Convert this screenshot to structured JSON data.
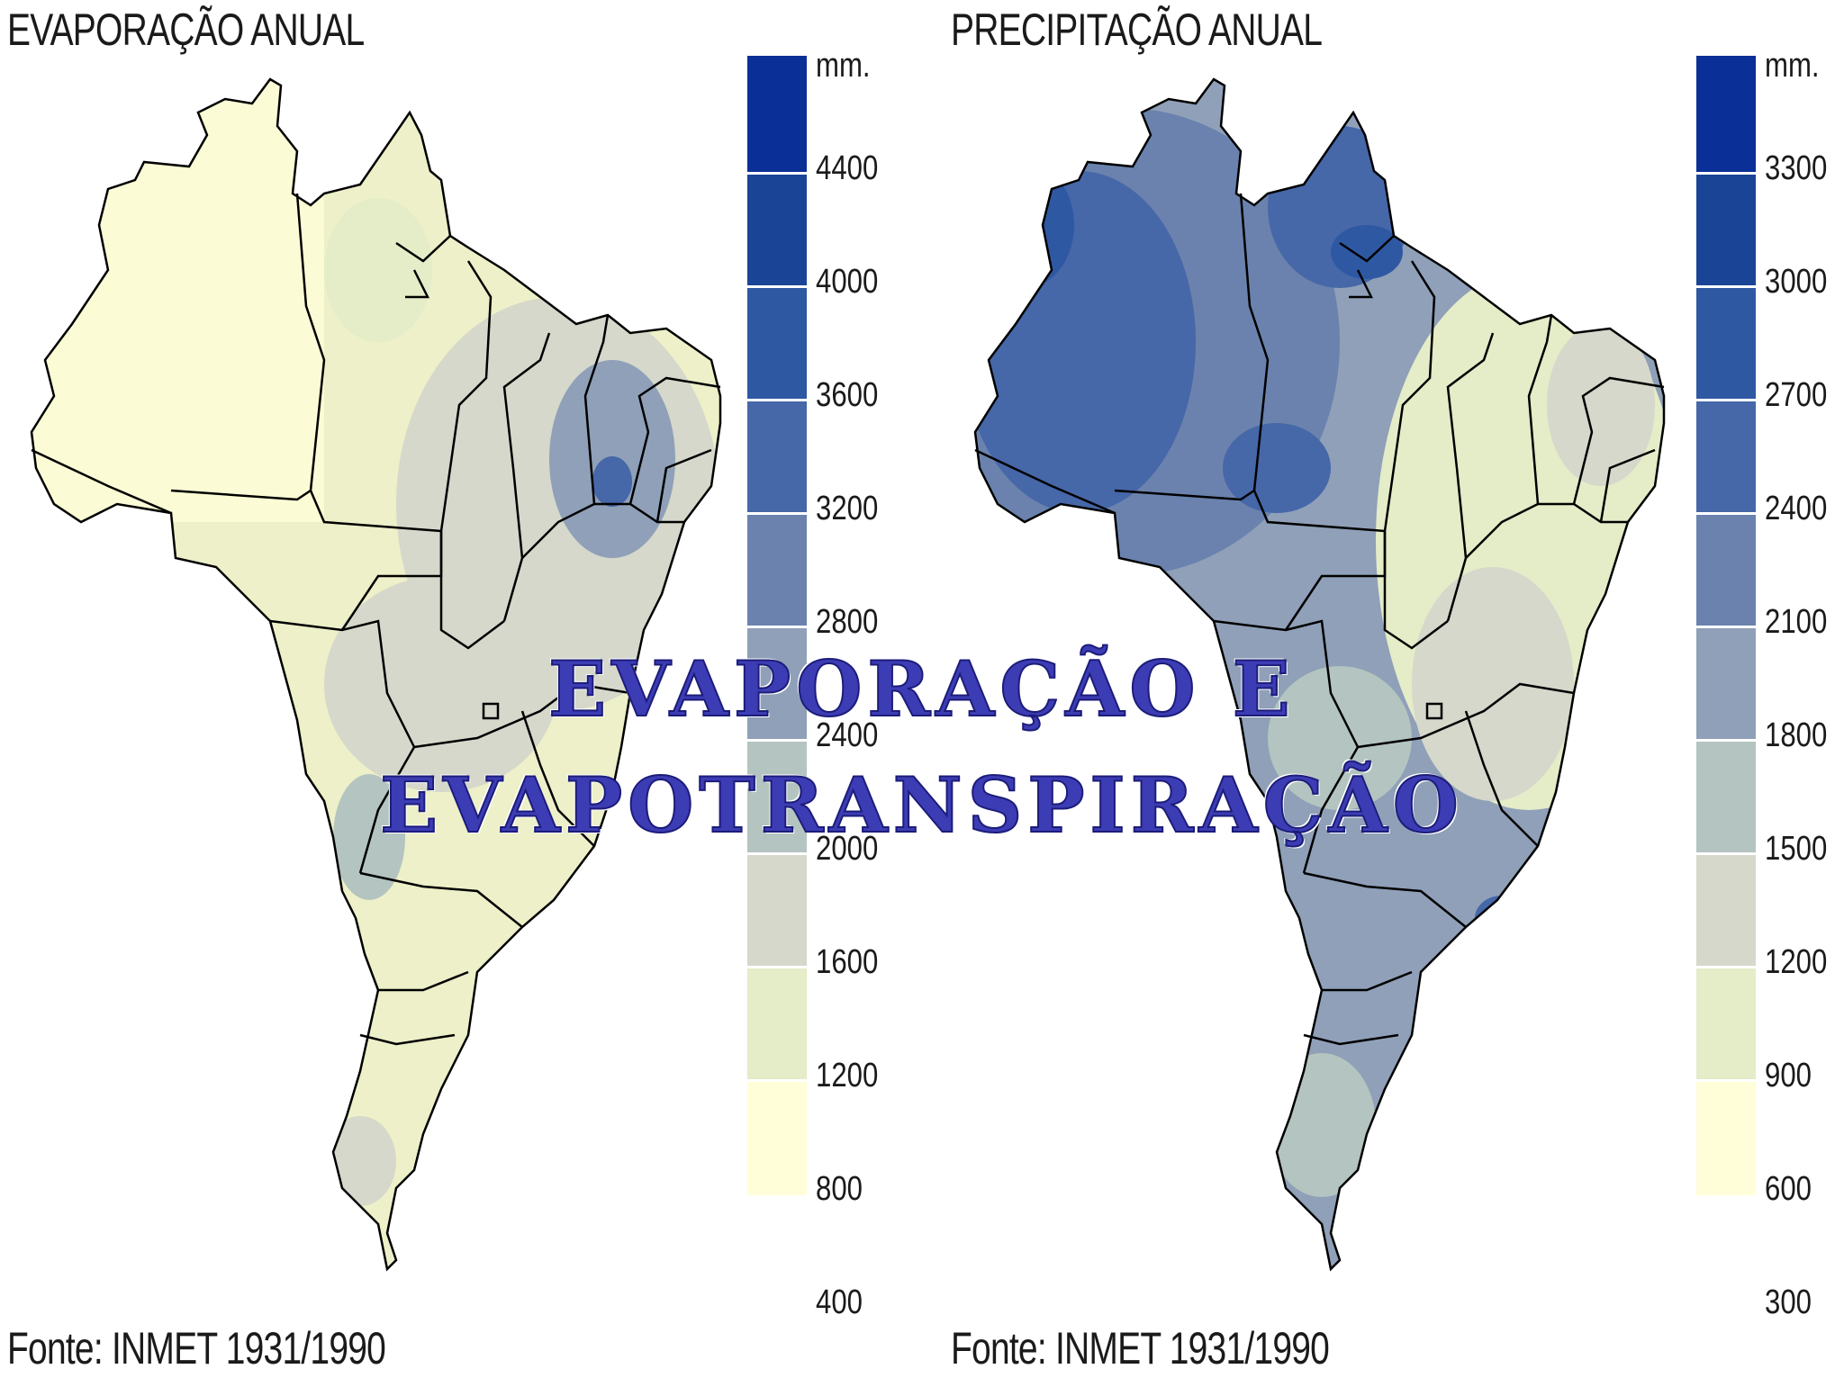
{
  "evaporation": {
    "title": "EVAPORAÇÃO ANUAL",
    "source": "Fonte: INMET 1931/1990",
    "legend_unit": "mm.",
    "legend_ticks": [
      "4400",
      "4000",
      "3600",
      "3200",
      "2800",
      "2400",
      "2000",
      "1600",
      "1200",
      "800",
      "400"
    ],
    "legend_colors": [
      "#0a2f96",
      "#1a4596",
      "#2f58a3",
      "#4667a8",
      "#6a82ad",
      "#8fa0b8",
      "#b4c4c0",
      "#d5d8ca",
      "#e4ecc8",
      "#fffed8"
    ]
  },
  "precipitation": {
    "title": "PRECIPITAÇÃO ANUAL",
    "source": "Fonte: INMET 1931/1990",
    "legend_unit": "mm.",
    "legend_ticks": [
      "3300",
      "3000",
      "2700",
      "2400",
      "2100",
      "1800",
      "1500",
      "1200",
      "900",
      "600",
      "300"
    ],
    "legend_colors": [
      "#0a2f96",
      "#1a4596",
      "#2f58a3",
      "#4667a8",
      "#6a82ad",
      "#8fa0b8",
      "#b4c4c0",
      "#d5d8ca",
      "#e4ecc8",
      "#fffed8"
    ]
  },
  "overlay": {
    "line1": "EVAPORAÇÃO E",
    "line2": "EVAPOTRANSPIRAÇÃO"
  }
}
